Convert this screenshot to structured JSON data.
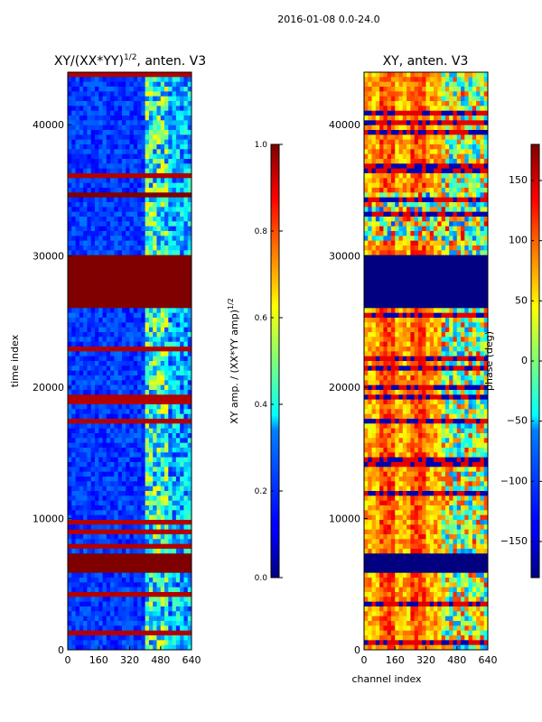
{
  "suptitle": "2016-01-08 0.0-24.0",
  "chart_data": [
    {
      "type": "heatmap",
      "title": "XY/(XX*YY)^1/2, anten. V3",
      "title_main": "XY/(XX*YY)",
      "title_exp": "1/2",
      "title_tail": ", anten. V3",
      "xlabel": "",
      "ylabel": "time index",
      "xlim": [
        0,
        640
      ],
      "ylim": [
        0,
        44000
      ],
      "xticks": [
        "0",
        "160",
        "320",
        "480",
        "640"
      ],
      "yticks": [
        "0",
        "10000",
        "20000",
        "30000",
        "40000"
      ],
      "colormap": "jet",
      "colorbar": {
        "label": "XY amp. / (XX*YY amp)^1/2",
        "label_main": "XY amp. / (XX*YY amp)",
        "label_exp": "1/2",
        "range": [
          0.0,
          1.0
        ],
        "ticks": [
          "0.0",
          "0.2",
          "0.4",
          "0.6",
          "0.8",
          "1.0"
        ]
      },
      "flagged_time_ranges": [
        [
          6000,
          7200
        ],
        [
          26200,
          30000
        ],
        [
          34500,
          34800
        ]
      ]
    },
    {
      "type": "heatmap",
      "title": "XY, anten. V3",
      "xlabel": "channel index",
      "ylabel": "",
      "xlim": [
        0,
        640
      ],
      "ylim": [
        0,
        44000
      ],
      "xticks": [
        "0",
        "160",
        "320",
        "480",
        "640"
      ],
      "yticks": [
        "0",
        "10000",
        "20000",
        "30000",
        "40000"
      ],
      "colormap": "jet",
      "colorbar": {
        "label": "phase (deg)",
        "range": [
          -180,
          180
        ],
        "ticks": [
          "−150",
          "−100",
          "−50",
          "0",
          "50",
          "100",
          "150"
        ]
      },
      "flagged_time_ranges": [
        [
          6000,
          7200
        ],
        [
          26200,
          30000
        ]
      ]
    }
  ]
}
